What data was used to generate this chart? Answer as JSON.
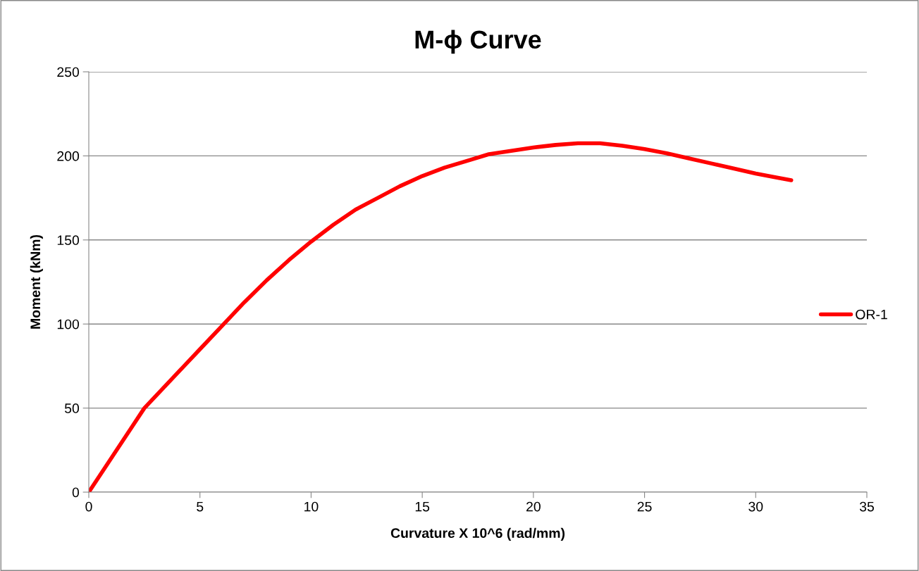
{
  "chart_data": {
    "type": "line",
    "title": "M-ϕ Curve",
    "xlabel": "Curvature X 10^6 (rad/mm)",
    "ylabel": "Moment (kNm)",
    "x": [
      0,
      1,
      2,
      2.5,
      3,
      4,
      5,
      6,
      7,
      8,
      9,
      10,
      11,
      12,
      13,
      14,
      15,
      16,
      17,
      18,
      19,
      20,
      21,
      22,
      23,
      24,
      25,
      26,
      27,
      28,
      29,
      30,
      31,
      31.6
    ],
    "series": [
      {
        "name": "OR-1",
        "color": "#ff0000",
        "values": [
          0,
          20,
          40,
          50,
          57,
          71,
          85,
          99,
          113,
          126,
          138,
          149,
          159,
          168,
          175,
          182,
          188,
          193,
          197,
          201,
          203,
          205,
          206.5,
          207.5,
          207.5,
          206,
          204,
          201.5,
          198.5,
          195.5,
          192.5,
          189.5,
          187,
          185.5
        ]
      }
    ],
    "xlim": [
      0,
      35
    ],
    "xticks": [
      0,
      5,
      10,
      15,
      20,
      25,
      30,
      35
    ],
    "ylim": [
      0,
      250
    ],
    "yticks": [
      0,
      50,
      100,
      150,
      200,
      250
    ],
    "grid": "y",
    "legend": "right",
    "marker": "none",
    "line_style": "solid"
  }
}
